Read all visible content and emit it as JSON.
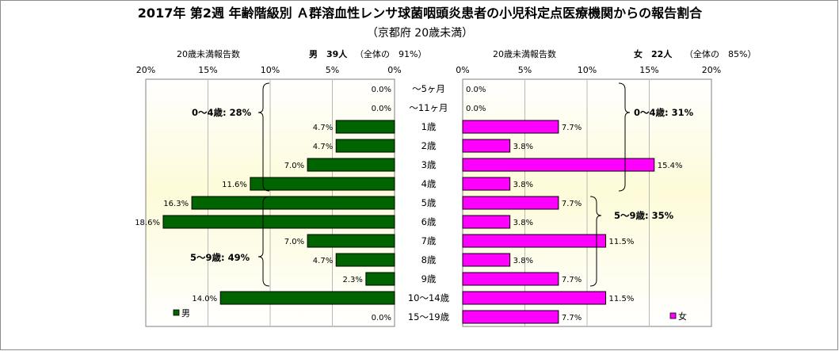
{
  "chart_data": {
    "type": "bar",
    "orientation": "horizontal-butterfly",
    "title": "2017年 第2週 年齢階級別 Ａ群溶血性レンサ球菌咽頭炎患者の小児科定点医療機関からの報告割合",
    "subtitle": "（京都府 20歳未満）",
    "categories": [
      "～5ヶ月",
      "～11ヶ月",
      "1歳",
      "2歳",
      "3歳",
      "4歳",
      "5歳",
      "6歳",
      "7歳",
      "8歳",
      "9歳",
      "10～14歳",
      "15～19歳"
    ],
    "xlim": [
      0,
      20
    ],
    "ticks": [
      "20%",
      "15%",
      "10%",
      "5%",
      "0%"
    ],
    "ticks_right": [
      "0%",
      "5%",
      "10%",
      "15%",
      "20%"
    ],
    "grid": true,
    "legend_position": "bottom",
    "series": [
      {
        "name": "男",
        "side": "left",
        "color": "#006400",
        "header_label": "20歳未満報告数",
        "header_count": "男　39人",
        "header_share": "（全体の　91%）",
        "values": [
          0.0,
          0.0,
          4.7,
          4.7,
          7.0,
          11.6,
          16.3,
          18.6,
          7.0,
          4.7,
          2.3,
          14.0,
          0.0
        ],
        "labels": [
          "0.0%",
          "0.0%",
          "4.7%",
          "4.7%",
          "7.0%",
          "11.6%",
          "16.3%",
          "18.6%",
          "7.0%",
          "4.7%",
          "2.3%",
          "14.0%",
          "0.0%"
        ],
        "groups": [
          {
            "label": "0～4歳: 28%"
          },
          {
            "label": "5～9歳: 49%"
          }
        ]
      },
      {
        "name": "女",
        "side": "right",
        "color": "#ff00ff",
        "header_label": "20歳未満報告数",
        "header_count": "女　22人",
        "header_share": "（全体の　85%）",
        "values": [
          0.0,
          0.0,
          7.7,
          3.8,
          15.4,
          3.8,
          7.7,
          3.8,
          11.5,
          3.8,
          7.7,
          11.5,
          7.7
        ],
        "labels": [
          "0.0%",
          "0.0%",
          "7.7%",
          "3.8%",
          "15.4%",
          "3.8%",
          "7.7%",
          "3.8%",
          "11.5%",
          "3.8%",
          "7.7%",
          "11.5%",
          "7.7%"
        ],
        "groups": [
          {
            "label": "0～4歳: 31%"
          },
          {
            "label": "5～9歳: 35%"
          }
        ]
      }
    ]
  }
}
